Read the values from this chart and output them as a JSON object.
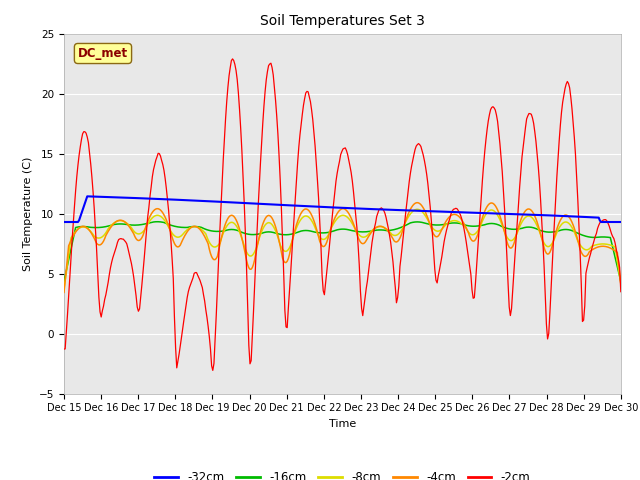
{
  "title": "Soil Temperatures Set 3",
  "xlabel": "Time",
  "ylabel": "Soil Temperature (C)",
  "ylim": [
    -5,
    25
  ],
  "days": 15,
  "fig_bg": "#ffffff",
  "ax_bg": "#e8e8e8",
  "annotation_text": "DC_met",
  "annotation_fg": "#8b0000",
  "annotation_bg": "#ffff99",
  "annotation_border": "#8b6914",
  "colors": {
    "32cm": "#0000ff",
    "16cm": "#00bb00",
    "8cm": "#dddd00",
    "4cm": "#ff8800",
    "2cm": "#ff0000"
  },
  "legend_labels": [
    "-32cm",
    "-16cm",
    "-8cm",
    "-4cm",
    "-2cm"
  ],
  "legend_colors": [
    "#0000ff",
    "#00bb00",
    "#dddd00",
    "#ff8800",
    "#ff0000"
  ],
  "x_tick_labels": [
    "Dec 15",
    "Dec 16",
    "Dec 17",
    "Dec 18",
    "Dec 19",
    "Dec 20",
    "Dec 21",
    "Dec 22",
    "Dec 23",
    "Dec 24",
    "Dec 25",
    "Dec 26",
    "Dec 27",
    "Dec 28",
    "Dec 29",
    "Dec 30"
  ],
  "y_ticks": [
    -5,
    0,
    5,
    10,
    15,
    20,
    25
  ],
  "grid_color": "#ffffff",
  "title_fontsize": 10,
  "label_fontsize": 8,
  "tick_fontsize": 7
}
